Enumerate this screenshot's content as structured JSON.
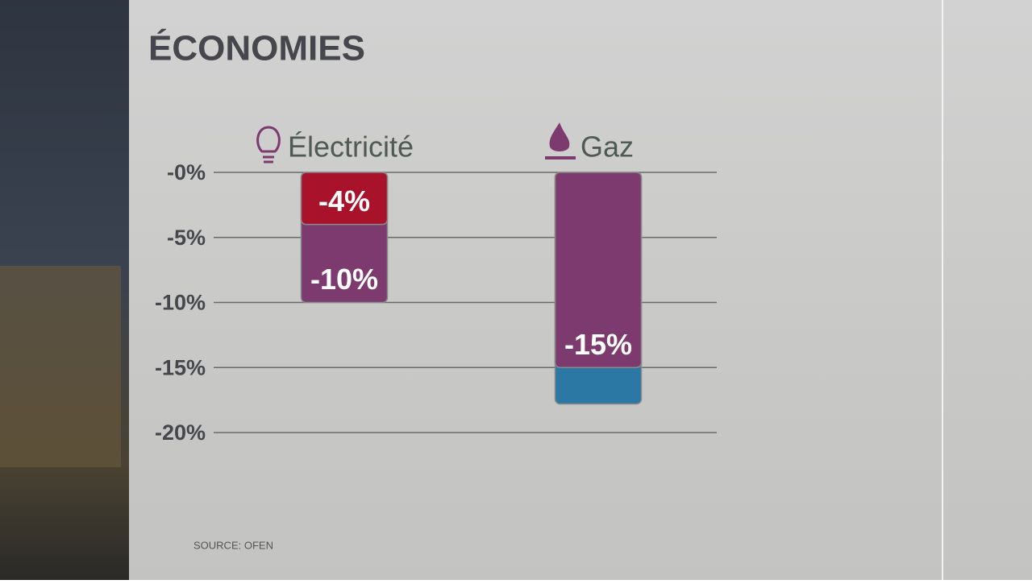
{
  "chart_data": {
    "type": "overlap-bar",
    "title": "ÉCONOMIES",
    "source": "SOURCE: OFEN",
    "categories": [
      "Électricité",
      "Gaz"
    ],
    "series": [
      {
        "color": "#2c78a4",
        "values": [
          null,
          -17.8
        ]
      },
      {
        "color": "#7d3a6f",
        "values": [
          -10,
          -15
        ],
        "value_labels": [
          "-10%",
          "-15%"
        ]
      },
      {
        "color": "#a8132b",
        "values": [
          -4,
          null
        ],
        "value_labels": [
          "-4%",
          null
        ]
      }
    ],
    "ylim": [
      0,
      -20
    ],
    "yticks": [
      {
        "value": 0,
        "label": "-0%"
      },
      {
        "value": -5,
        "label": "-5%"
      },
      {
        "value": -10,
        "label": "-10%"
      },
      {
        "value": -15,
        "label": "-15%"
      },
      {
        "value": -20,
        "label": "-20%"
      }
    ],
    "grid": true
  }
}
